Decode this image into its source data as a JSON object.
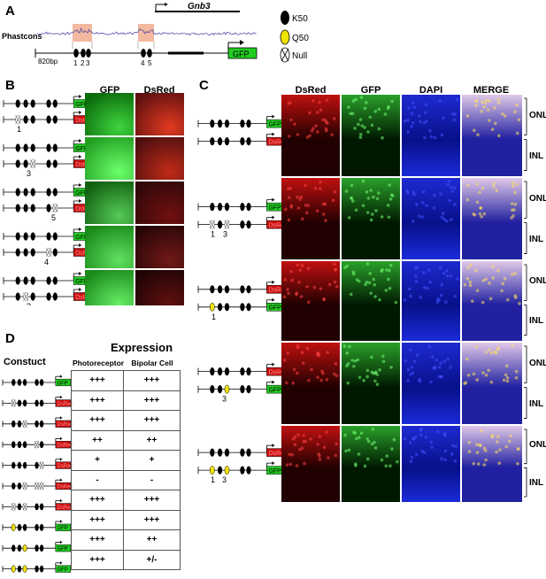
{
  "panel_labels": {
    "a": "A",
    "b": "B",
    "c": "C",
    "d": "D"
  },
  "panel_a": {
    "gene": "Gnb3",
    "track_label": "Phastcons",
    "scale_label": "820bp",
    "site_numbers": [
      "1",
      "2",
      "3",
      "4",
      "5"
    ],
    "reporter": "GFP"
  },
  "legend": {
    "items": [
      {
        "symbol": "black-ellipse",
        "label": "K50"
      },
      {
        "symbol": "yellow-ellipse",
        "label": "Q50"
      },
      {
        "symbol": "crossed-ellipse",
        "label": "Null"
      }
    ]
  },
  "panel_b": {
    "columns": [
      "GFP",
      "DsRed"
    ],
    "reporters": [
      "GFP",
      "DsRed"
    ],
    "mutation_labels": [
      "1",
      "3",
      "5",
      "4",
      "2"
    ]
  },
  "panel_c": {
    "columns": [
      "DsRed",
      "GFP",
      "DAPI",
      "MERGE"
    ],
    "layer_labels": [
      "ONL",
      "INL"
    ],
    "mutation_labels": [
      "1",
      "3",
      "1",
      "3",
      "1",
      "3"
    ]
  },
  "panel_d": {
    "title": "Expression",
    "construct_header": "Constuct",
    "col_photoreceptor": "Photoreceptor",
    "col_bipolar": "Bipolar Cell",
    "rows": [
      {
        "photoreceptor": "+++",
        "bipolar": "+++"
      },
      {
        "photoreceptor": "+++",
        "bipolar": "+++"
      },
      {
        "photoreceptor": "+++",
        "bipolar": "+++"
      },
      {
        "photoreceptor": "++",
        "bipolar": "++"
      },
      {
        "photoreceptor": "+",
        "bipolar": "+"
      },
      {
        "photoreceptor": "-",
        "bipolar": "-"
      },
      {
        "photoreceptor": "+++",
        "bipolar": "+++"
      },
      {
        "photoreceptor": "+++",
        "bipolar": "+++"
      },
      {
        "photoreceptor": "+++",
        "bipolar": "++"
      },
      {
        "photoreceptor": "+++",
        "bipolar": "+/-"
      }
    ]
  },
  "colors": {
    "gfp": "#22cc22",
    "dsred": "#cc1111",
    "q50": "#f2e200",
    "k50": "#000000",
    "phastcons_highlight": "#f2b8a0"
  }
}
